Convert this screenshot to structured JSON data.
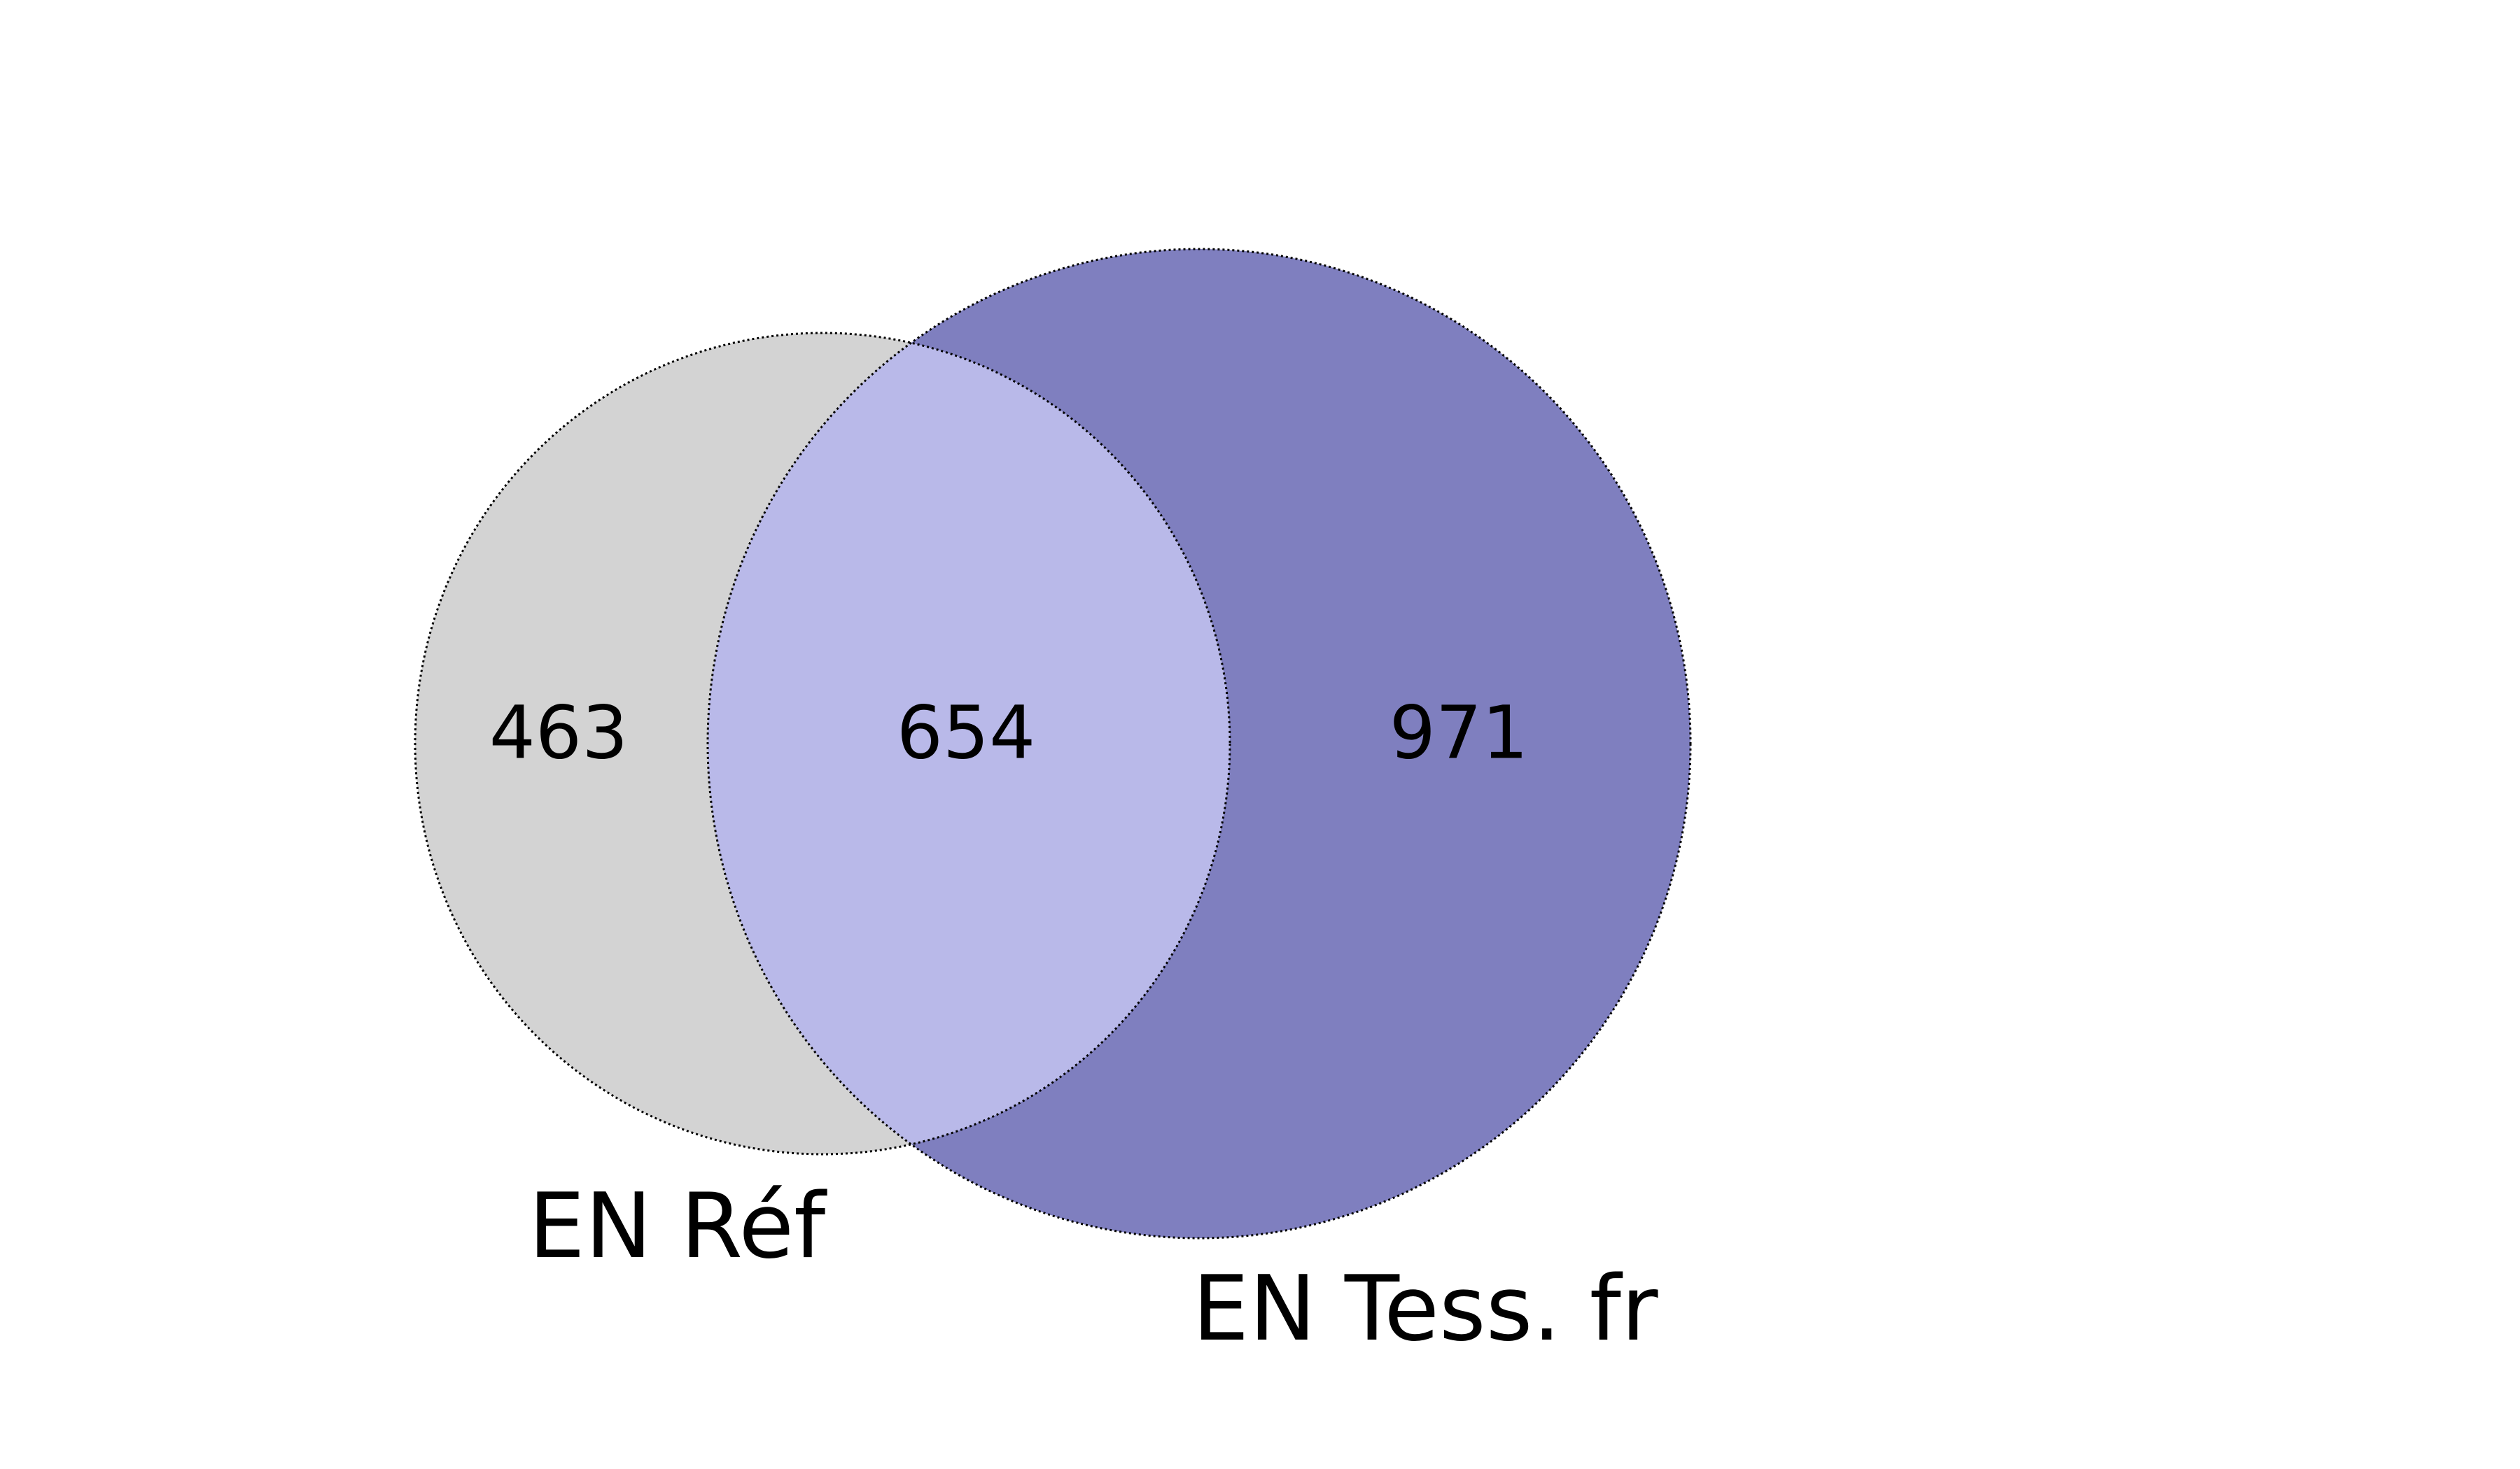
{
  "sets": [
    {
      "id": "ref",
      "label": "EN Réf",
      "color": "#d3d3d3"
    },
    {
      "id": "tess",
      "label": "EN Tess. fr",
      "color": "#7f7fbf"
    }
  ],
  "regions": {
    "ref_only": "463",
    "intersection": "654",
    "tess_only": "971"
  },
  "intersection_color": "#b9b9e9",
  "outline_color": "#000000"
}
